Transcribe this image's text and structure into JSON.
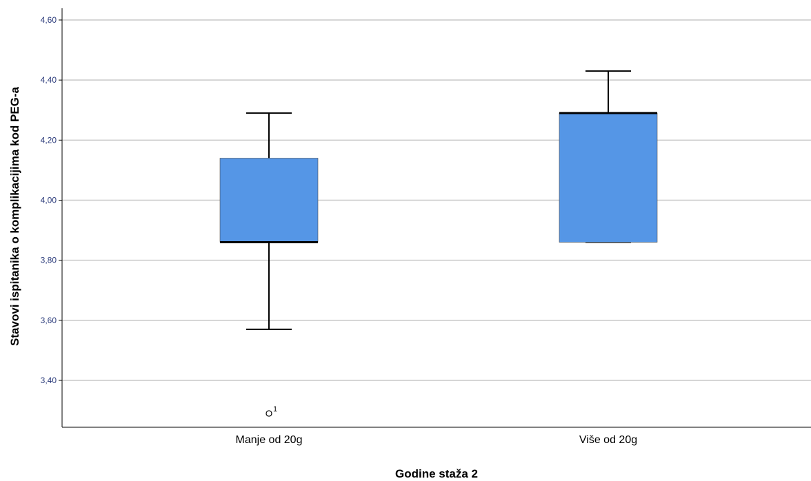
{
  "chart_data": {
    "type": "boxplot",
    "title": "",
    "xlabel": "Godine staža 2",
    "ylabel": "Stavovi ispitanika o komplikacijima kod PEG-a",
    "ylim": [
      3.28,
      4.65
    ],
    "yticks": [
      "3,40",
      "3,60",
      "3,80",
      "4,00",
      "4,20",
      "4,40",
      "4,60"
    ],
    "ytick_values": [
      3.4,
      3.6,
      3.8,
      4.0,
      4.2,
      4.4,
      4.6
    ],
    "grid": true,
    "box_color": "#5596e6",
    "categories": [
      "Manje od 20g",
      "Više od 20g"
    ],
    "boxes": [
      {
        "category": "Manje od 20g",
        "whisker_low": 3.57,
        "q1": 3.86,
        "median": 3.86,
        "q3": 4.14,
        "whisker_high": 4.29,
        "outliers": [
          {
            "value": 3.29,
            "label": "1"
          }
        ]
      },
      {
        "category": "Više od 20g",
        "whisker_low": 3.86,
        "q1": 3.86,
        "median": 4.29,
        "q3": 4.29,
        "whisker_high": 4.43,
        "outliers": []
      }
    ]
  }
}
